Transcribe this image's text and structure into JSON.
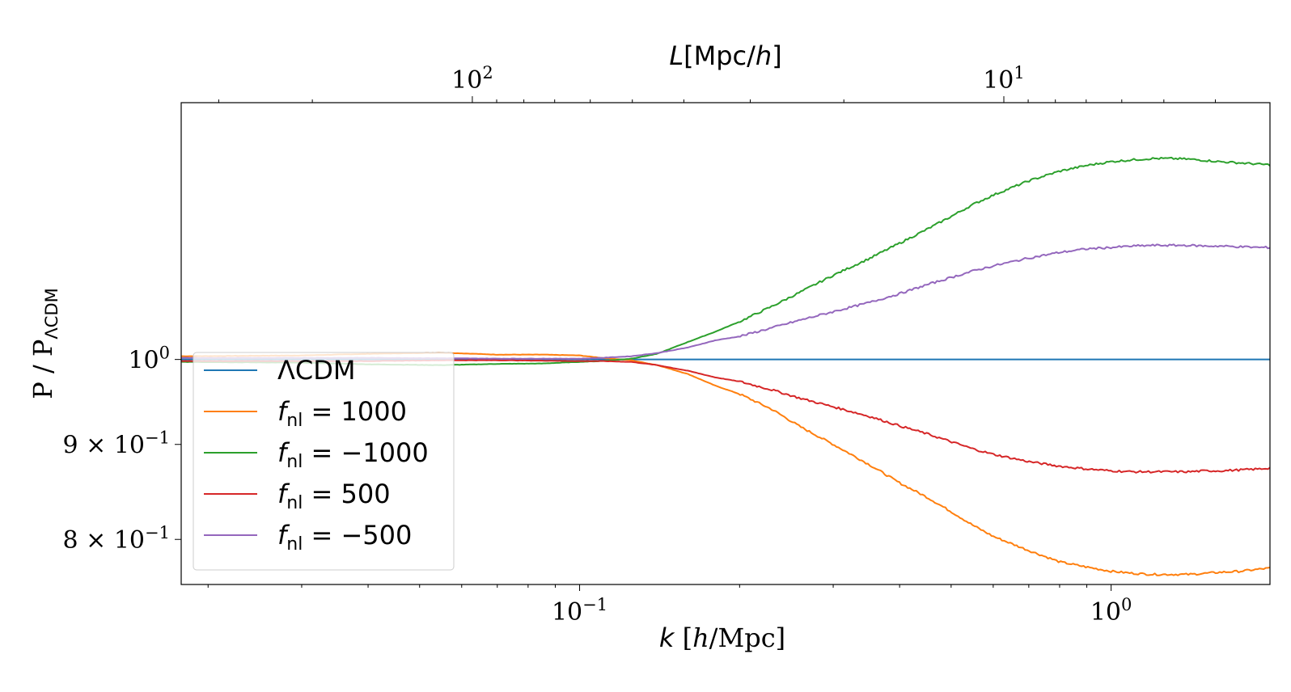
{
  "chart_data": {
    "type": "line",
    "xlabel": {
      "italic": "k",
      "rest": " [",
      "italic2": "h",
      "rest2": "/Mpc]"
    },
    "top_xlabel": {
      "italic": "L",
      "rest": "[Mpc/",
      "italic2": "h",
      "rest2": "]"
    },
    "ylabel": {
      "main": "P / P",
      "sub": "ΛCDM"
    },
    "x_scale": "log",
    "y_scale": "log",
    "xlim": [
      0.0178,
      1.99
    ],
    "ylim": [
      0.7565,
      1.375
    ],
    "x_ticks": [
      {
        "value": 0.1,
        "base": "10",
        "exp": "−1"
      },
      {
        "value": 1.0,
        "base": "10",
        "exp": "0"
      }
    ],
    "top_ticks": [
      {
        "k_value": 0.06283,
        "base": "10",
        "exp": "2"
      },
      {
        "k_value": 0.6283,
        "base": "10",
        "exp": "1"
      }
    ],
    "y_ticks": [
      {
        "value": 1.0,
        "mant": "",
        "base": "10",
        "exp": "0"
      },
      {
        "value": 0.9,
        "mant": "9 × ",
        "base": "10",
        "exp": "−1"
      },
      {
        "value": 0.8,
        "mant": "8 × ",
        "base": "10",
        "exp": "−1"
      }
    ],
    "legend_position": "lower left",
    "grid": false,
    "series": [
      {
        "name": "ΛCDM",
        "label_main": "ΛCDM",
        "label_sub": "",
        "label_val": "",
        "color": "#1f77b4",
        "points": [
          [
            0.0178,
            1.0
          ],
          [
            1.99,
            1.0
          ]
        ]
      },
      {
        "name": "fnl = 1000",
        "label_main": "f",
        "label_sub": "nl",
        "label_val": " = 1000",
        "color": "#ff7f0e",
        "points": [
          [
            0.0178,
            1.004
          ],
          [
            0.03,
            1.005
          ],
          [
            0.04,
            1.007
          ],
          [
            0.055,
            1.0085
          ],
          [
            0.07,
            1.006
          ],
          [
            0.085,
            1.006
          ],
          [
            0.1,
            1.005
          ],
          [
            0.11,
            1.002
          ],
          [
            0.125,
            0.999
          ],
          [
            0.14,
            0.993
          ],
          [
            0.16,
            0.982
          ],
          [
            0.18,
            0.968
          ],
          [
            0.2,
            0.958
          ],
          [
            0.23,
            0.94
          ],
          [
            0.26,
            0.92
          ],
          [
            0.3,
            0.9
          ],
          [
            0.35,
            0.878
          ],
          [
            0.4,
            0.858
          ],
          [
            0.45,
            0.843
          ],
          [
            0.5,
            0.828
          ],
          [
            0.55,
            0.814
          ],
          [
            0.6,
            0.803
          ],
          [
            0.7,
            0.789
          ],
          [
            0.8,
            0.778
          ],
          [
            0.9,
            0.773
          ],
          [
            1.0,
            0.769
          ],
          [
            1.1,
            0.767
          ],
          [
            1.2,
            0.766
          ],
          [
            1.3,
            0.766
          ],
          [
            1.4,
            0.766
          ],
          [
            1.5,
            0.767
          ],
          [
            1.6,
            0.768
          ],
          [
            1.75,
            0.769
          ],
          [
            1.9,
            0.771
          ],
          [
            1.99,
            0.772
          ]
        ]
      },
      {
        "name": "fnl = -1000",
        "label_main": "f",
        "label_sub": "nl",
        "label_val": " = −1000",
        "color": "#2ca02c",
        "points": [
          [
            0.0178,
            0.997
          ],
          [
            0.03,
            0.996
          ],
          [
            0.04,
            0.994
          ],
          [
            0.055,
            0.993
          ],
          [
            0.07,
            0.9945
          ],
          [
            0.085,
            0.995
          ],
          [
            0.1,
            0.997
          ],
          [
            0.11,
            0.998
          ],
          [
            0.125,
            1.001
          ],
          [
            0.14,
            1.007
          ],
          [
            0.16,
            1.022
          ],
          [
            0.18,
            1.035
          ],
          [
            0.2,
            1.048
          ],
          [
            0.23,
            1.068
          ],
          [
            0.26,
            1.087
          ],
          [
            0.3,
            1.11
          ],
          [
            0.35,
            1.133
          ],
          [
            0.4,
            1.155
          ],
          [
            0.45,
            1.175
          ],
          [
            0.5,
            1.194
          ],
          [
            0.55,
            1.212
          ],
          [
            0.6,
            1.226
          ],
          [
            0.7,
            1.248
          ],
          [
            0.8,
            1.263
          ],
          [
            0.9,
            1.272
          ],
          [
            1.0,
            1.278
          ],
          [
            1.1,
            1.281
          ],
          [
            1.2,
            1.283
          ],
          [
            1.3,
            1.283
          ],
          [
            1.4,
            1.282
          ],
          [
            1.5,
            1.28
          ],
          [
            1.6,
            1.278
          ],
          [
            1.75,
            1.276
          ],
          [
            1.9,
            1.274
          ],
          [
            1.99,
            1.273
          ]
        ]
      },
      {
        "name": "fnl = 500",
        "label_main": "f",
        "label_sub": "nl",
        "label_val": " = 500",
        "color": "#d62728",
        "points": [
          [
            0.0178,
            0.998
          ],
          [
            0.03,
            0.998
          ],
          [
            0.04,
            0.998
          ],
          [
            0.055,
            0.999
          ],
          [
            0.07,
            0.999
          ],
          [
            0.085,
            0.9985
          ],
          [
            0.1,
            0.998
          ],
          [
            0.11,
            0.998
          ],
          [
            0.125,
            0.997
          ],
          [
            0.14,
            0.993
          ],
          [
            0.16,
            0.986
          ],
          [
            0.18,
            0.978
          ],
          [
            0.2,
            0.973
          ],
          [
            0.23,
            0.963
          ],
          [
            0.26,
            0.953
          ],
          [
            0.3,
            0.943
          ],
          [
            0.35,
            0.932
          ],
          [
            0.4,
            0.921
          ],
          [
            0.45,
            0.912
          ],
          [
            0.5,
            0.903
          ],
          [
            0.55,
            0.895
          ],
          [
            0.6,
            0.889
          ],
          [
            0.7,
            0.881
          ],
          [
            0.8,
            0.876
          ],
          [
            0.9,
            0.873
          ],
          [
            1.0,
            0.871
          ],
          [
            1.1,
            0.87
          ],
          [
            1.2,
            0.87
          ],
          [
            1.3,
            0.87
          ],
          [
            1.4,
            0.87
          ],
          [
            1.5,
            0.871
          ],
          [
            1.6,
            0.871
          ],
          [
            1.75,
            0.872
          ],
          [
            1.9,
            0.873
          ],
          [
            1.99,
            0.874
          ]
        ]
      },
      {
        "name": "fnl = -500",
        "label_main": "f",
        "label_sub": "nl",
        "label_val": " = −500",
        "color": "#9467bd",
        "points": [
          [
            0.0178,
            1.002
          ],
          [
            0.03,
            1.002
          ],
          [
            0.04,
            1.002
          ],
          [
            0.055,
            1.0015
          ],
          [
            0.07,
            1.001
          ],
          [
            0.085,
            1.001
          ],
          [
            0.1,
            1.001
          ],
          [
            0.11,
            1.002
          ],
          [
            0.125,
            1.004
          ],
          [
            0.14,
            1.008
          ],
          [
            0.16,
            1.015
          ],
          [
            0.18,
            1.024
          ],
          [
            0.2,
            1.029
          ],
          [
            0.23,
            1.04
          ],
          [
            0.26,
            1.05
          ],
          [
            0.3,
            1.061
          ],
          [
            0.35,
            1.073
          ],
          [
            0.4,
            1.085
          ],
          [
            0.45,
            1.097
          ],
          [
            0.5,
            1.107
          ],
          [
            0.55,
            1.116
          ],
          [
            0.6,
            1.123
          ],
          [
            0.7,
            1.134
          ],
          [
            0.8,
            1.142
          ],
          [
            0.9,
            1.147
          ],
          [
            1.0,
            1.149
          ],
          [
            1.1,
            1.151
          ],
          [
            1.2,
            1.152
          ],
          [
            1.3,
            1.152
          ],
          [
            1.4,
            1.152
          ],
          [
            1.5,
            1.151
          ],
          [
            1.6,
            1.151
          ],
          [
            1.75,
            1.15
          ],
          [
            1.9,
            1.149
          ],
          [
            1.99,
            1.149
          ]
        ]
      }
    ]
  }
}
